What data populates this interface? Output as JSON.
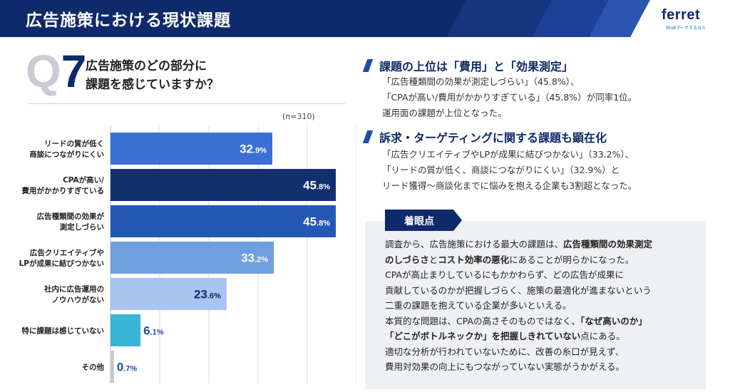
{
  "header": {
    "title": "広告施策における現状課題",
    "logo": "ferret",
    "logo_sub": "BtoBマーケするなら"
  },
  "question": {
    "q_letter": "Q",
    "number": "7",
    "line1": "広告施策のどの部分に",
    "line2": "課題を感じていますか？",
    "n_label": "(n=310)"
  },
  "chart_data": {
    "type": "bar",
    "orientation": "horizontal",
    "title": "広告施策のどの部分に課題を感じていますか？",
    "categories": [
      [
        "リードの質が低く",
        "商談につながりにくい"
      ],
      [
        "CPAが高い/",
        "費用がかかりすぎている"
      ],
      [
        "広告種類間の効果が",
        "測定しづらい"
      ],
      [
        "広告クリエイティブや",
        "LPが成果に結びつかない"
      ],
      [
        "社内に広告運用の",
        "ノウハウがない"
      ],
      [
        "特に課題は感じていない"
      ],
      [
        "その他"
      ]
    ],
    "values": [
      32.9,
      45.8,
      45.8,
      33.2,
      23.6,
      6.1,
      0.7
    ],
    "value_labels": [
      {
        "int": "32",
        "dec": ".9%"
      },
      {
        "int": "45",
        "dec": ".8%"
      },
      {
        "int": "45",
        "dec": ".8%"
      },
      {
        "int": "33",
        "dec": ".2%"
      },
      {
        "int": "23",
        "dec": ".6%"
      },
      {
        "int": "6",
        "dec": ".1%"
      },
      {
        "int": "0",
        "dec": ".7%"
      }
    ],
    "colors": [
      "#3a70d4",
      "#13306e",
      "#2458b4",
      "#6e9fde",
      "#a9c4f1",
      "#39b5d7",
      "#c8c8c8"
    ],
    "label_colors": [
      "#ffffff",
      "#ffffff",
      "#ffffff",
      "#ffffff",
      "#0f2a6b",
      "#1e4fa8",
      "#1e4fa8"
    ],
    "xlim": [
      0,
      50
    ],
    "grid": true,
    "xlabel": "",
    "ylabel": ""
  },
  "findings": [
    {
      "heading": "課題の上位は「費用」と「効果測定」",
      "lines": [
        "「広告種類間の効果が測定しづらい」（45.8%）、",
        "「CPAが高い/費用がかかりすぎている」（45.8%）が同率1位。",
        "運用面の課題が上位となった。"
      ]
    },
    {
      "heading": "訴求・ターゲティングに関する課題も顕在化",
      "lines": [
        "「広告クリエイティブやLPが成果に結びつかない」（33.2%）、",
        "「リードの質が低く、商談につながりにくい」（32.9%）と",
        "リード獲得〜商談化までに悩みを抱える企業も3割超となった。"
      ]
    }
  ],
  "focus": {
    "tag": "着眼点",
    "lines": [
      [
        {
          "t": "調査から、広告施策における最大の課題は、",
          "b": false
        },
        {
          "t": "広告種類間の効果測定",
          "b": true
        }
      ],
      [
        {
          "t": "のしづらさ",
          "b": true
        },
        {
          "t": "と",
          "b": false
        },
        {
          "t": "コスト効率の悪化",
          "b": true
        },
        {
          "t": "にあることが明らかになった。",
          "b": false
        }
      ],
      [
        {
          "t": "CPAが高止まりしているにもかかわらず、どの広告が成果に",
          "b": false
        }
      ],
      [
        {
          "t": "貢献しているのかが把握しづらく、施策の最適化が進まないという",
          "b": false
        }
      ],
      [
        {
          "t": "二重の課題を抱えている企業が多いといえる。",
          "b": false
        }
      ],
      [
        {
          "t": "本質的な問題は、CPAの高さそのものではなく、",
          "b": false
        },
        {
          "t": "「なぜ高いのか」",
          "b": true
        }
      ],
      [
        {
          "t": "「どこがボトルネックか」を把握しきれていない",
          "b": true
        },
        {
          "t": "点にある。",
          "b": false
        }
      ],
      [
        {
          "t": "適切な分析が行われていないために、改善の糸口が見えず、",
          "b": false
        }
      ],
      [
        {
          "t": "費用対効果の向上にもつながっていない実態がうかがえる。",
          "b": false
        }
      ]
    ]
  }
}
